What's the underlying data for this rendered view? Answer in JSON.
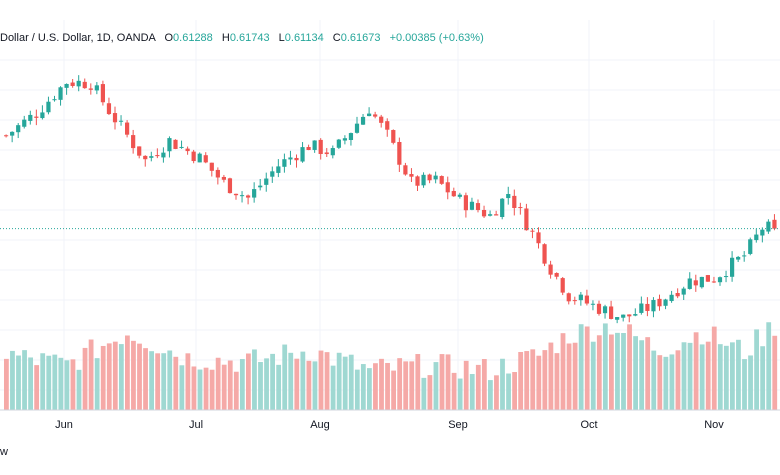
{
  "legend": {
    "instrument": "Dollar / U.S. Dollar, 1D, OANDA",
    "o_label": "O",
    "o_value": "0.61288",
    "h_label": "H",
    "h_value": "0.61743",
    "l_label": "L",
    "l_value": "0.61134",
    "c_label": "C",
    "c_value": "0.61673",
    "change": "+0.00385 (+0.63%)"
  },
  "watermark_text": "w",
  "colors": {
    "up": "#26a69a",
    "down": "#ef5350",
    "up_volume": "#9fd8d2",
    "down_volume": "#f5a9a7",
    "grid": "#f0f3fa",
    "price_line": "#26a69a",
    "axis_text": "#131722"
  },
  "chart_data": {
    "type": "candlestick",
    "title": "Dollar / U.S. Dollar, 1D, OANDA",
    "xlabel": "",
    "ylabel": "",
    "x_ticks": [
      "Jun",
      "Jul",
      "Aug",
      "Sep",
      "Oct",
      "Nov"
    ],
    "ylim": [
      0.585,
      0.685
    ],
    "grid": true,
    "last_close": 0.61673,
    "anchors": [
      {
        "day": 0,
        "price": 0.654
      },
      {
        "day": 5,
        "price": 0.663
      },
      {
        "day": 10,
        "price": 0.6755
      },
      {
        "day": 14,
        "price": 0.675
      },
      {
        "day": 17,
        "price": 0.664
      },
      {
        "day": 20,
        "price": 0.654
      },
      {
        "day": 23,
        "price": 0.644
      },
      {
        "day": 27,
        "price": 0.652
      },
      {
        "day": 32,
        "price": 0.645
      },
      {
        "day": 36,
        "price": 0.635
      },
      {
        "day": 40,
        "price": 0.629
      },
      {
        "day": 45,
        "price": 0.642
      },
      {
        "day": 50,
        "price": 0.65
      },
      {
        "day": 54,
        "price": 0.647
      },
      {
        "day": 60,
        "price": 0.665
      },
      {
        "day": 63,
        "price": 0.654
      },
      {
        "day": 67,
        "price": 0.635
      },
      {
        "day": 71,
        "price": 0.636
      },
      {
        "day": 75,
        "price": 0.628
      },
      {
        "day": 80,
        "price": 0.622
      },
      {
        "day": 83,
        "price": 0.631
      },
      {
        "day": 87,
        "price": 0.615
      },
      {
        "day": 90,
        "price": 0.601
      },
      {
        "day": 93,
        "price": 0.59
      },
      {
        "day": 97,
        "price": 0.586
      },
      {
        "day": 102,
        "price": 0.581
      },
      {
        "day": 107,
        "price": 0.586
      },
      {
        "day": 113,
        "price": 0.596
      },
      {
        "day": 117,
        "price": 0.597
      },
      {
        "day": 122,
        "price": 0.606
      },
      {
        "day": 125,
        "price": 0.617
      },
      {
        "day": 127,
        "price": 0.6167
      }
    ],
    "volume_anchors": [
      {
        "day": 0,
        "volume": 0.55
      },
      {
        "day": 10,
        "volume": 0.45
      },
      {
        "day": 20,
        "volume": 0.78
      },
      {
        "day": 30,
        "volume": 0.52
      },
      {
        "day": 40,
        "volume": 0.48
      },
      {
        "day": 50,
        "volume": 0.6
      },
      {
        "day": 60,
        "volume": 0.4
      },
      {
        "day": 70,
        "volume": 0.45
      },
      {
        "day": 80,
        "volume": 0.4
      },
      {
        "day": 88,
        "volume": 0.55
      },
      {
        "day": 93,
        "volume": 0.75
      },
      {
        "day": 100,
        "volume": 0.85
      },
      {
        "day": 108,
        "volume": 0.6
      },
      {
        "day": 115,
        "volume": 0.78
      },
      {
        "day": 122,
        "volume": 0.58
      },
      {
        "day": 127,
        "volume": 0.85
      }
    ],
    "days": 128
  }
}
